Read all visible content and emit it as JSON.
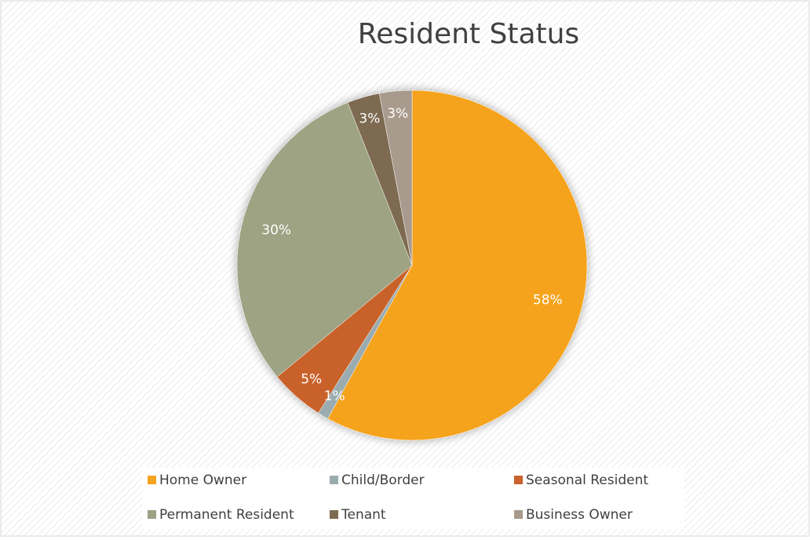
{
  "chart_data": {
    "type": "pie",
    "title": "Resident Status",
    "categories": [
      "Home Owner",
      "Child/Border",
      "Seasonal Resident",
      "Permanent Resident",
      "Tenant",
      "Business Owner"
    ],
    "values": [
      58,
      1,
      5,
      30,
      3,
      3
    ],
    "value_labels": [
      "58%",
      "1%",
      "5%",
      "30%",
      "3%",
      "3%"
    ],
    "colors": [
      "#f5a31f",
      "#9aacb0",
      "#c9622c",
      "#9da383",
      "#7d6b51",
      "#a89a8c"
    ],
    "legend": "bottom"
  }
}
